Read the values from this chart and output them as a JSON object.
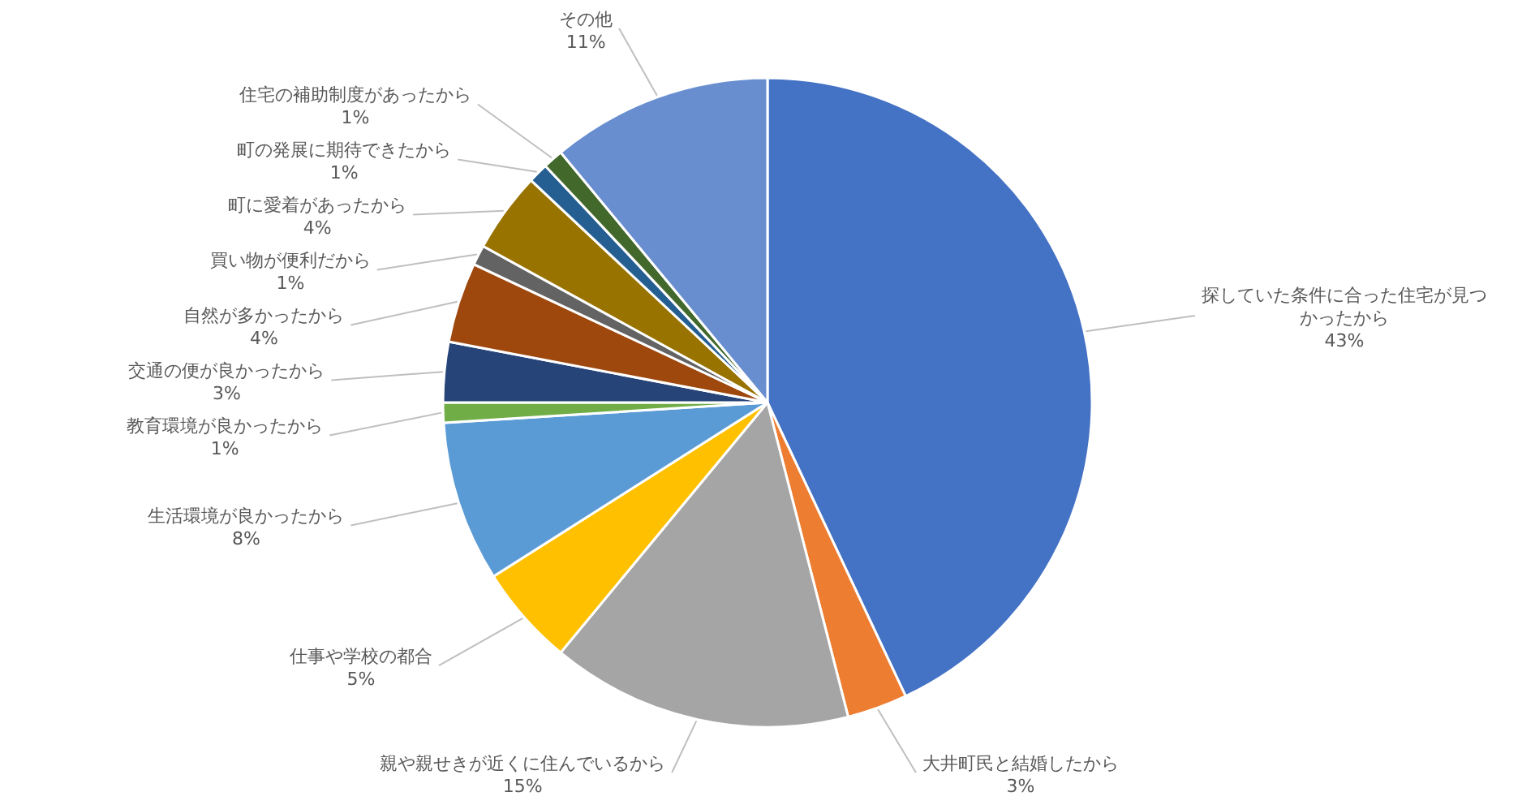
{
  "chart_data": {
    "type": "pie",
    "categories": [
      "探していた条件に合った住宅が見つかったから",
      "大井町民と結婚したから",
      "親や親せきが近くに住んでいるから",
      "仕事や学校の都合",
      "生活環境が良かったから",
      "教育環境が良かったから",
      "交通の便が良かったから",
      "自然が多かったから",
      "買い物が便利だから",
      "町に愛着があったから",
      "町の発展に期待できたから",
      "住宅の補助制度があったから",
      "その他"
    ],
    "values": [
      43,
      3,
      15,
      5,
      8,
      1,
      3,
      4,
      1,
      4,
      1,
      1,
      11
    ],
    "value_labels": [
      "43%",
      "3%",
      "15%",
      "5%",
      "8%",
      "1%",
      "3%",
      "4%",
      "1%",
      "4%",
      "1%",
      "1%",
      "11%"
    ],
    "colors": [
      "#4472c4",
      "#ed7d31",
      "#a5a5a5",
      "#ffc000",
      "#5b9bd5",
      "#70ad47",
      "#264478",
      "#9e480e",
      "#636363",
      "#997300",
      "#255e91",
      "#43682b",
      "#698ed0"
    ]
  }
}
